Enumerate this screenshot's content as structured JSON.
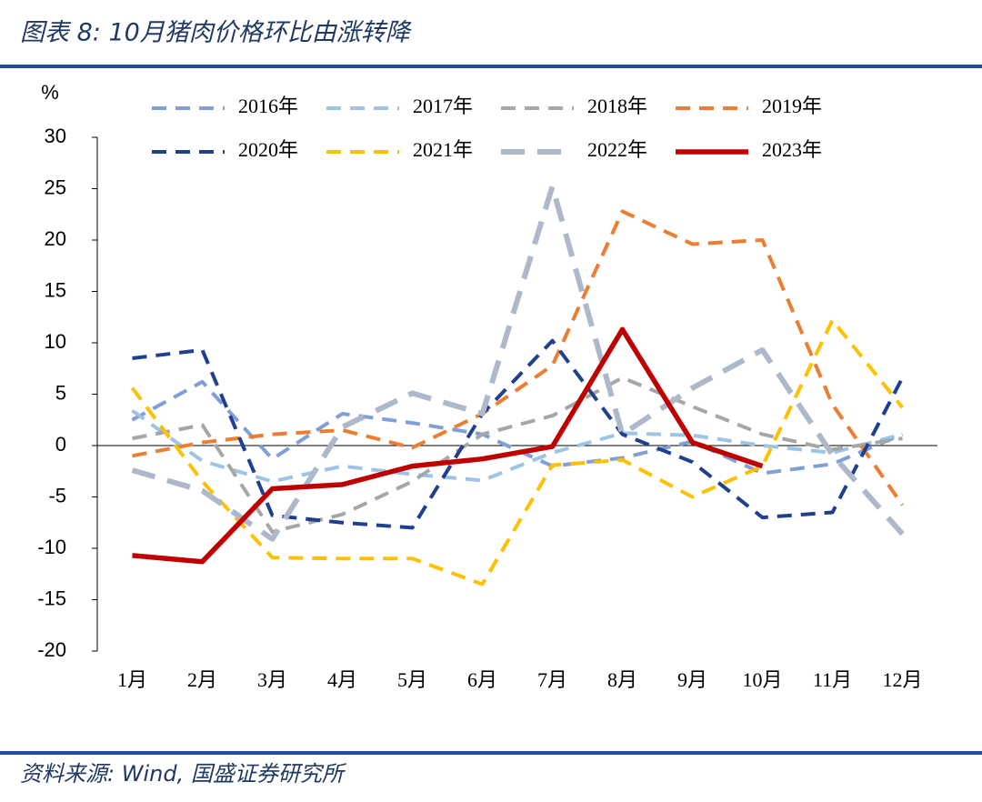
{
  "chart_data": {
    "type": "line",
    "title": "图表 8: 10月猪肉价格环比由涨转降",
    "y_label": "%",
    "source": "资料来源: Wind, 国盛证券研究所",
    "categories": [
      "1月",
      "2月",
      "3月",
      "4月",
      "5月",
      "6月",
      "7月",
      "8月",
      "9月",
      "10月",
      "11月",
      "12月"
    ],
    "ylim": [
      -20,
      30
    ],
    "yticks": [
      -20,
      -15,
      -10,
      -5,
      0,
      5,
      10,
      15,
      20,
      25,
      30
    ],
    "series": [
      {
        "name": "2016年",
        "color": "#7f9fd6",
        "style": "dashed",
        "values": [
          2.5,
          6.2,
          -1.3,
          3.1,
          2.2,
          1.1,
          -2,
          -1.2,
          0.4,
          -2.7,
          -1.8,
          1.1
        ]
      },
      {
        "name": "2017年",
        "color": "#9dc3e6",
        "style": "dashed",
        "values": [
          3.4,
          -1.5,
          -3.5,
          -2,
          -2.8,
          -3.4,
          -0.7,
          1.2,
          1,
          0,
          -0.7,
          1.1
        ]
      },
      {
        "name": "2018年",
        "color": "#a6a6a6",
        "style": "dashed",
        "values": [
          0.7,
          2,
          -8.4,
          -6.7,
          -3.5,
          1.1,
          2.9,
          6.6,
          3.8,
          1.1,
          -0.4,
          0.7
        ]
      },
      {
        "name": "2019年",
        "color": "#ed7d31",
        "style": "dashed",
        "values": [
          -1,
          0.3,
          1.1,
          1.5,
          -0.2,
          3.1,
          7.8,
          22.8,
          19.6,
          20,
          4,
          -5.8
        ]
      },
      {
        "name": "2020年",
        "color": "#1f3f8f",
        "style": "dashed",
        "values": [
          8.5,
          9.3,
          -6.8,
          -7.5,
          -8,
          3.1,
          10.2,
          1.1,
          -1.6,
          -7,
          -6.5,
          6.6
        ]
      },
      {
        "name": "2021年",
        "color": "#ffc000",
        "style": "dashed",
        "values": [
          5.6,
          -3.5,
          -10.9,
          -11,
          -11,
          -13.5,
          -1.9,
          -1.4,
          -5,
          -2,
          12.2,
          3.7
        ]
      },
      {
        "name": "2022年",
        "color": "#adb9ca",
        "style": "long-dashed",
        "values": [
          -2.4,
          -4.4,
          -9.1,
          1.8,
          5.1,
          3.1,
          25.2,
          1.1,
          5.6,
          9.3,
          -0.9,
          -8.6
        ]
      },
      {
        "name": "2023年",
        "color": "#c00000",
        "style": "solid",
        "values": [
          -10.7,
          -11.3,
          -4.2,
          -3.8,
          -2,
          -1.3,
          -0.1,
          11.3,
          0.3,
          -2,
          null,
          null
        ]
      }
    ]
  }
}
